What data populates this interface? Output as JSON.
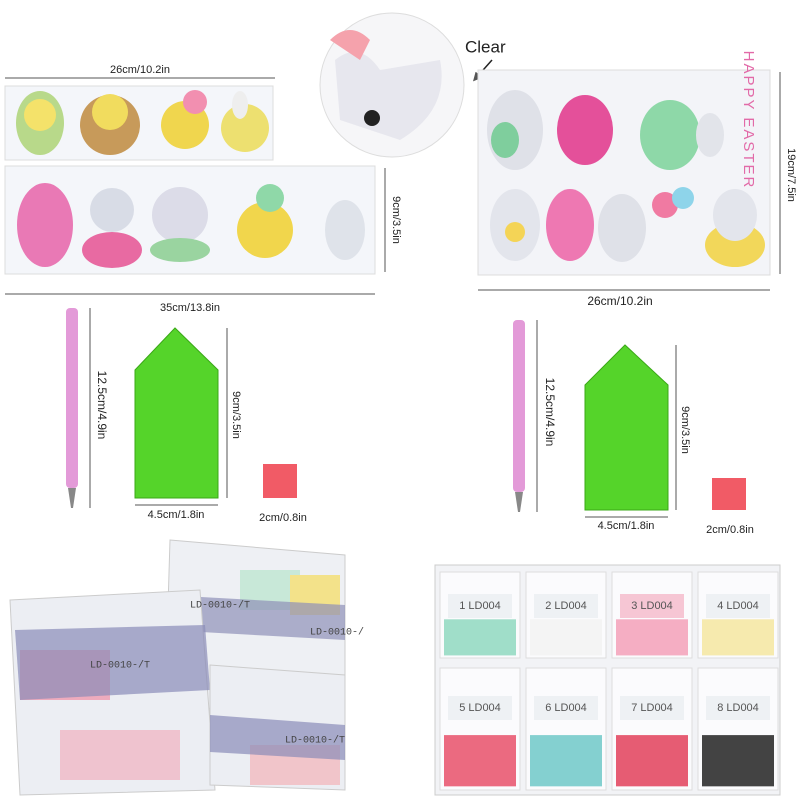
{
  "left_kit": {
    "top_strip_width": "26cm/10.2in",
    "strip_height": "9cm/3.5in",
    "bottom_strip_width": "35cm/13.8in",
    "pen_length": "12.5cm/4.9in",
    "tray_length": "9cm/3.5in",
    "tray_width": "4.5cm/1.8in",
    "square_size": "2cm/0.8in",
    "bag_labels": [
      "LD-0010-/T",
      "LD-0010-/",
      "LD-0010-/T",
      "LD-0010-/T"
    ]
  },
  "right_kit": {
    "callout": "Clear",
    "sheet_text": "HAPPY EASTER",
    "sheet_height": "19cm/7.5in",
    "sheet_width": "26cm/10.2in",
    "pen_length": "12.5cm/4.9in",
    "tray_length": "9cm/3.5in",
    "tray_width": "4.5cm/1.8in",
    "square_size": "2cm/0.8in",
    "bags": [
      "1 LD004",
      "2 LD004",
      "3 LD004",
      "4 LD004",
      "5 LD004",
      "6 LD004",
      "7 LD004",
      "8 LD004"
    ]
  }
}
